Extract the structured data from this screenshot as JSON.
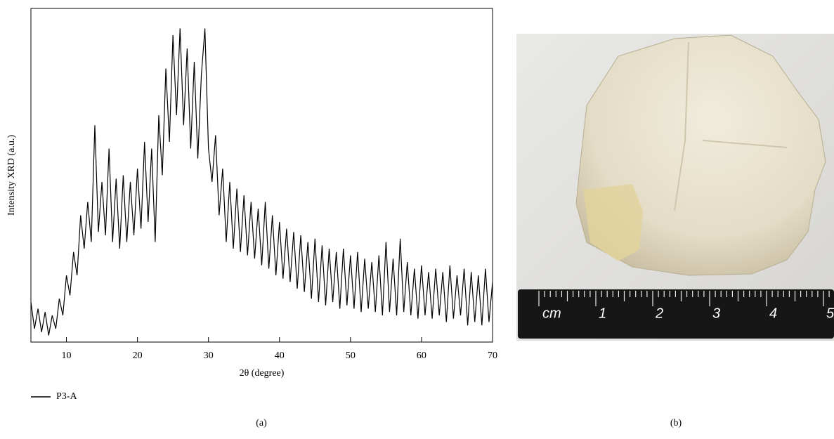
{
  "chart_data": {
    "type": "line",
    "x_label": "2θ (degree)",
    "y_label": "Intensity XRD (a.u.)",
    "xlim": [
      5,
      70
    ],
    "xticks": [
      10,
      20,
      30,
      40,
      50,
      60,
      70
    ],
    "ylim": [
      0,
      100
    ],
    "series": [
      {
        "name": "P3-A",
        "color": "#000000",
        "x": [
          5,
          5.5,
          6,
          6.5,
          7,
          7.5,
          8,
          8.5,
          9,
          9.5,
          10,
          10.5,
          11,
          11.5,
          12,
          12.5,
          13,
          13.5,
          14,
          14.5,
          15,
          15.5,
          16,
          16.5,
          17,
          17.5,
          18,
          18.5,
          19,
          19.5,
          20,
          20.5,
          21,
          21.5,
          22,
          22.5,
          23,
          23.5,
          24,
          24.5,
          25,
          25.5,
          26,
          26.5,
          27,
          27.5,
          28,
          28.5,
          29,
          29.5,
          30,
          30.5,
          31,
          31.5,
          32,
          32.5,
          33,
          33.5,
          34,
          34.5,
          35,
          35.5,
          36,
          36.5,
          37,
          37.5,
          38,
          38.5,
          39,
          39.5,
          40,
          40.5,
          41,
          41.5,
          42,
          42.5,
          43,
          43.5,
          44,
          44.5,
          45,
          45.5,
          46,
          46.5,
          47,
          47.5,
          48,
          48.5,
          49,
          49.5,
          50,
          50.5,
          51,
          51.5,
          52,
          52.5,
          53,
          53.5,
          54,
          54.5,
          55,
          55.5,
          56,
          56.5,
          57,
          57.5,
          58,
          58.5,
          59,
          59.5,
          60,
          60.5,
          61,
          61.5,
          62,
          62.5,
          63,
          63.5,
          64,
          64.5,
          65,
          65.5,
          66,
          66.5,
          67,
          67.5,
          68,
          68.5,
          69,
          69.5,
          70
        ],
        "values": [
          12,
          4,
          10,
          3,
          9,
          2,
          8,
          4,
          13,
          8,
          20,
          14,
          27,
          20,
          38,
          28,
          42,
          30,
          65,
          33,
          48,
          32,
          58,
          30,
          49,
          28,
          50,
          30,
          48,
          32,
          52,
          34,
          60,
          36,
          58,
          30,
          68,
          50,
          82,
          60,
          92,
          68,
          94,
          65,
          88,
          58,
          84,
          55,
          80,
          94,
          58,
          48,
          62,
          38,
          52,
          30,
          48,
          28,
          46,
          27,
          44,
          26,
          42,
          25,
          40,
          23,
          42,
          22,
          38,
          20,
          36,
          19,
          34,
          18,
          33,
          16,
          32,
          15,
          30,
          13,
          31,
          12,
          29,
          11,
          28,
          12,
          27,
          10,
          28,
          11,
          26,
          10,
          27,
          9,
          25,
          10,
          24,
          9,
          26,
          8,
          30,
          9,
          25,
          8,
          31,
          9,
          24,
          8,
          22,
          7,
          23,
          8,
          21,
          7,
          22,
          8,
          21,
          6,
          23,
          7,
          20,
          8,
          22,
          5,
          21,
          6,
          20,
          5,
          22,
          6,
          18
        ]
      }
    ],
    "panel_label": "(a)"
  },
  "photo": {
    "ruler_labels": [
      "cm",
      "1",
      "2",
      "3",
      "4",
      "5"
    ],
    "panel_label": "(b)"
  }
}
